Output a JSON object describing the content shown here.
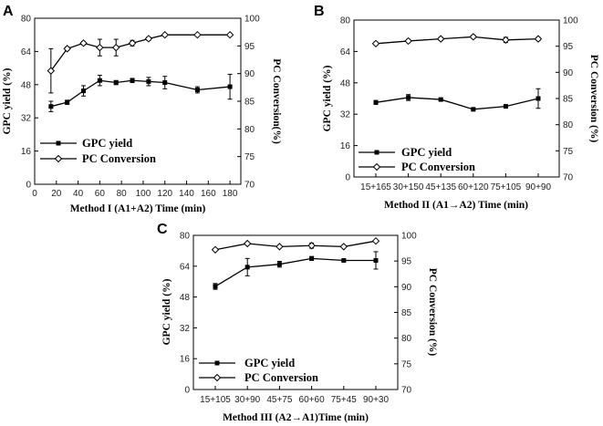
{
  "chart_data": [
    {
      "type": "line",
      "panel": "A",
      "xlabel": "Method I (A1+A2) Time (min)",
      "ylabel": "GPC yield (%)",
      "y2label": "PC Conversion(%)",
      "x_kind": "numeric",
      "xlim": [
        0,
        190
      ],
      "xticks": [
        0,
        20,
        40,
        60,
        80,
        100,
        120,
        140,
        160,
        180
      ],
      "xtick_labels": [
        "0",
        "20",
        "40",
        "60",
        "80",
        "100",
        "120",
        "140",
        "160",
        "180"
      ],
      "ylim": [
        0,
        80
      ],
      "yticks": [
        0,
        16,
        32,
        48,
        64,
        80
      ],
      "ytick_labels": [
        "0",
        "16",
        "32",
        "48",
        "64",
        "80"
      ],
      "y2lim": [
        70,
        100
      ],
      "y2ticks": [
        70,
        75,
        80,
        85,
        90,
        95,
        100
      ],
      "y2tick_labels": [
        "70",
        "75",
        "80",
        "85",
        "90",
        "95",
        "100"
      ],
      "legend_position": "bottom-left",
      "series": [
        {
          "name": "GPC yield",
          "axis": "left",
          "marker": "filled-square",
          "x": [
            15,
            30,
            45,
            60,
            75,
            90,
            105,
            120,
            150,
            180
          ],
          "y": [
            37.5,
            39.5,
            45,
            50,
            49,
            50,
            49.5,
            49,
            45.5,
            47
          ],
          "err": [
            2.5,
            1,
            2.5,
            2.5,
            1,
            1,
            2,
            3,
            1.5,
            6
          ]
        },
        {
          "name": "PC Conversion",
          "axis": "right",
          "marker": "open-diamond",
          "x": [
            15,
            30,
            45,
            60,
            75,
            90,
            105,
            120,
            150,
            180
          ],
          "y": [
            90.5,
            94.5,
            95.5,
            94.7,
            94.7,
            95.5,
            96.3,
            97,
            97,
            97
          ],
          "err": [
            4,
            0.3,
            0.3,
            1.5,
            1.5,
            0.5,
            0.3,
            0.2,
            0.2,
            0.2
          ]
        }
      ]
    },
    {
      "type": "line",
      "panel": "B",
      "xlabel": "Method II (A1→A2) Time (min)",
      "ylabel": "GPC yield (%)",
      "y2label": "PC Conversion (%)",
      "x_kind": "categorical",
      "categories": [
        "15+165",
        "30+150",
        "45+135",
        "60+120",
        "75+105",
        "90+90"
      ],
      "ylim": [
        0,
        80
      ],
      "yticks": [
        0,
        16,
        32,
        48,
        64,
        80
      ],
      "ytick_labels": [
        "0",
        "16",
        "32",
        "48",
        "64",
        "80"
      ],
      "y2lim": [
        70,
        100
      ],
      "y2ticks": [
        70,
        75,
        80,
        85,
        90,
        95,
        100
      ],
      "y2tick_labels": [
        "70",
        "75",
        "80",
        "85",
        "90",
        "95",
        "100"
      ],
      "legend_position": "bottom-left",
      "series": [
        {
          "name": "GPC yield",
          "axis": "left",
          "marker": "filled-square",
          "y": [
            38,
            40.5,
            39.5,
            34.5,
            36,
            40
          ],
          "err": [
            1,
            1.5,
            0.5,
            0.5,
            0.5,
            5
          ]
        },
        {
          "name": "PC Conversion",
          "axis": "right",
          "marker": "open-diamond",
          "y": [
            95.5,
            96,
            96.4,
            96.8,
            96.2,
            96.4
          ],
          "err": [
            0.3,
            0.3,
            0.3,
            0.3,
            0.5,
            0.3
          ]
        }
      ]
    },
    {
      "type": "line",
      "panel": "C",
      "xlabel": "Method III (A2→A1)Time (min)",
      "ylabel": "GPC yield (%)",
      "y2label": "PC Conversion (%)",
      "x_kind": "categorical",
      "categories": [
        "15+105",
        "30+90",
        "45+75",
        "60+60",
        "75+45",
        "90+30"
      ],
      "ylim": [
        0,
        80
      ],
      "yticks": [
        0,
        16,
        32,
        48,
        64,
        80
      ],
      "ytick_labels": [
        "0",
        "16",
        "32",
        "48",
        "64",
        "80"
      ],
      "y2lim": [
        70,
        100
      ],
      "y2ticks": [
        70,
        75,
        80,
        85,
        90,
        95,
        100
      ],
      "y2tick_labels": [
        "70",
        "75",
        "80",
        "85",
        "90",
        "95",
        "100"
      ],
      "legend_position": "bottom-left",
      "series": [
        {
          "name": "GPC  yield",
          "axis": "left",
          "marker": "filled-square",
          "y": [
            53.5,
            63.5,
            65,
            68,
            67,
            67
          ],
          "err": [
            1.5,
            4.5,
            1.5,
            1,
            0.5,
            4.5
          ]
        },
        {
          "name": "PC Conversion",
          "axis": "right",
          "marker": "open-diamond",
          "y": [
            97.2,
            98.4,
            97.8,
            98,
            97.8,
            98.9
          ],
          "err": [
            0.2,
            0.2,
            0.2,
            0.5,
            0.2,
            0.2
          ]
        }
      ]
    }
  ]
}
